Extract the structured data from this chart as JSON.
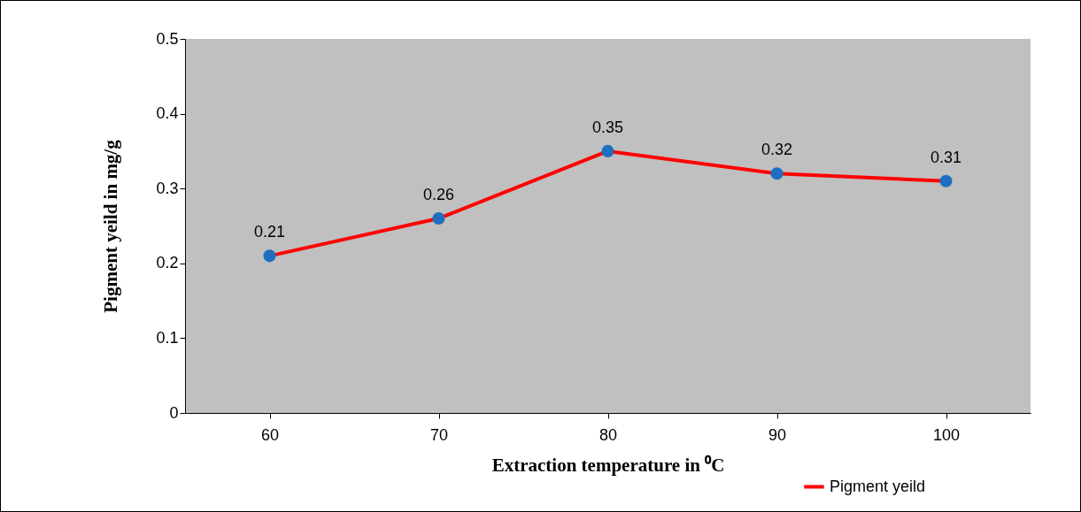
{
  "chart_data": {
    "type": "line",
    "xlabel": "Extraction temperature in ⁰C",
    "ylabel": "Pigment  yeild in mg/g",
    "categories": [
      "60",
      "70",
      "80",
      "90",
      "100"
    ],
    "series": [
      {
        "name": "Pigment yeild",
        "color": "#ff0000",
        "values": [
          0.21,
          0.26,
          0.35,
          0.32,
          0.31
        ]
      }
    ],
    "ylim": [
      0,
      0.5
    ],
    "yticks": [
      0,
      0.1,
      0.2,
      0.3,
      0.4,
      0.5
    ],
    "data_labels": true,
    "marker": "circle",
    "legend": "bottom right",
    "grid": false
  }
}
